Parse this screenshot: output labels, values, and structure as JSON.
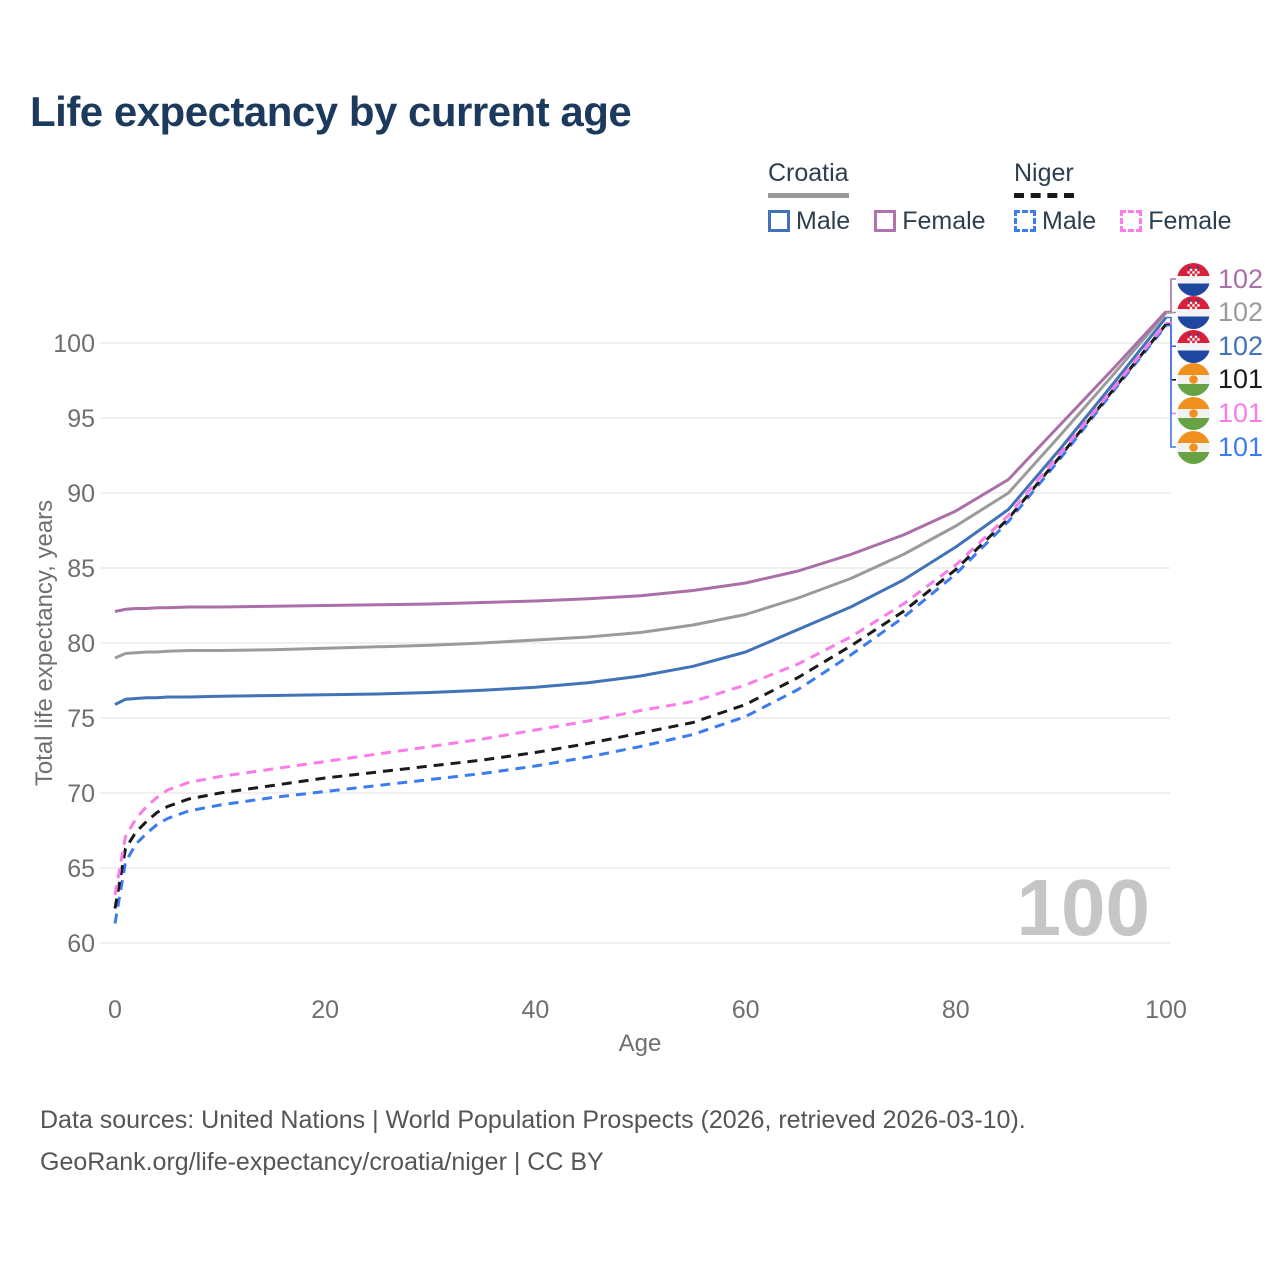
{
  "title": "Life expectancy by current age",
  "legend": {
    "groups": [
      {
        "country": "Croatia",
        "line_style": "solid",
        "underline_color": "#9a9a9a",
        "items": [
          {
            "label": "Male",
            "color": "#4273b8"
          },
          {
            "label": "Female",
            "color": "#b272ae"
          }
        ]
      },
      {
        "country": "Niger",
        "line_style": "dashed",
        "underline_color": "#1a1a1a",
        "items": [
          {
            "label": "Male",
            "color": "#3d7bf0"
          },
          {
            "label": "Female",
            "color": "#fb7ce8"
          }
        ]
      }
    ]
  },
  "watermark": "100",
  "footer": {
    "line1": "Data sources: United Nations | World Population Prospects (2026, retrieved 2026-03-10).",
    "line2": "GeoRank.org/life-expectancy/croatia/niger | CC BY"
  },
  "chart_data": {
    "type": "line",
    "title": "Life expectancy by current age",
    "xlabel": "Age",
    "ylabel": "Total life expectancy, years",
    "x_ticks": [
      0,
      20,
      40,
      60,
      80,
      100
    ],
    "y_ticks": [
      60,
      65,
      70,
      75,
      80,
      85,
      90,
      95,
      100
    ],
    "xlim": [
      0,
      100
    ],
    "ylim": [
      58,
      104
    ],
    "grid": true,
    "legend_position": "top-right",
    "x": [
      0,
      1,
      2,
      3,
      4,
      5,
      7,
      10,
      15,
      20,
      25,
      30,
      35,
      40,
      45,
      50,
      55,
      60,
      65,
      70,
      75,
      80,
      85,
      90,
      95,
      100
    ],
    "series": [
      {
        "name": "Croatia Female",
        "country": "Croatia",
        "sex": "Female",
        "flag": "croatia",
        "color": "#aa6fa9",
        "dash": "solid",
        "end_label": "102",
        "values": [
          82.1,
          82.25,
          82.3,
          82.3,
          82.35,
          82.35,
          82.4,
          82.4,
          82.45,
          82.5,
          82.55,
          82.6,
          82.7,
          82.8,
          82.95,
          83.15,
          83.5,
          84.0,
          84.8,
          85.9,
          87.2,
          88.8,
          90.9,
          94.6,
          98.3,
          102.1
        ]
      },
      {
        "name": "Croatia Both sexes",
        "country": "Croatia",
        "sex": "Both",
        "flag": "croatia",
        "color": "#9b9b9b",
        "dash": "solid",
        "end_label": "102",
        "values": [
          79.0,
          79.3,
          79.35,
          79.4,
          79.4,
          79.45,
          79.5,
          79.5,
          79.55,
          79.65,
          79.75,
          79.85,
          80.0,
          80.2,
          80.4,
          80.7,
          81.2,
          81.9,
          83.0,
          84.3,
          85.9,
          87.8,
          90.0,
          93.9,
          97.9,
          102.0
        ]
      },
      {
        "name": "Croatia Male",
        "country": "Croatia",
        "sex": "Male",
        "flag": "croatia",
        "color": "#4273b8",
        "dash": "solid",
        "end_label": "102",
        "values": [
          75.9,
          76.25,
          76.3,
          76.35,
          76.35,
          76.4,
          76.4,
          76.45,
          76.5,
          76.55,
          76.6,
          76.7,
          76.85,
          77.05,
          77.35,
          77.8,
          78.45,
          79.4,
          80.9,
          82.4,
          84.2,
          86.4,
          88.9,
          93.0,
          97.3,
          101.7
        ]
      },
      {
        "name": "Niger Both sexes",
        "country": "Niger",
        "sex": "Both",
        "flag": "niger",
        "color": "#1a1a1a",
        "dash": "dashed",
        "end_label": "101",
        "values": [
          62.3,
          66.3,
          67.4,
          68.1,
          68.7,
          69.1,
          69.6,
          70.0,
          70.5,
          71.0,
          71.4,
          71.8,
          72.2,
          72.7,
          73.3,
          74.0,
          74.7,
          75.9,
          77.7,
          79.8,
          82.1,
          84.9,
          88.3,
          92.5,
          96.9,
          101.25
        ]
      },
      {
        "name": "Niger Female",
        "country": "Niger",
        "sex": "Female",
        "flag": "niger",
        "color": "#fb7ce8",
        "dash": "dashed",
        "end_label": "101",
        "values": [
          63.2,
          67.1,
          68.3,
          69.1,
          69.7,
          70.2,
          70.7,
          71.1,
          71.6,
          72.1,
          72.6,
          73.1,
          73.6,
          74.2,
          74.8,
          75.5,
          76.1,
          77.2,
          78.6,
          80.4,
          82.6,
          85.2,
          88.5,
          92.7,
          97.0,
          101.35
        ]
      },
      {
        "name": "Niger Male",
        "country": "Niger",
        "sex": "Male",
        "flag": "niger",
        "color": "#3d7bf0",
        "dash": "dashed",
        "end_label": "101",
        "values": [
          61.3,
          65.4,
          66.6,
          67.3,
          67.9,
          68.3,
          68.8,
          69.2,
          69.7,
          70.1,
          70.5,
          70.9,
          71.3,
          71.8,
          72.4,
          73.1,
          73.9,
          75.1,
          76.9,
          79.2,
          81.7,
          84.6,
          88.1,
          92.35,
          96.8,
          101.15
        ]
      }
    ]
  }
}
